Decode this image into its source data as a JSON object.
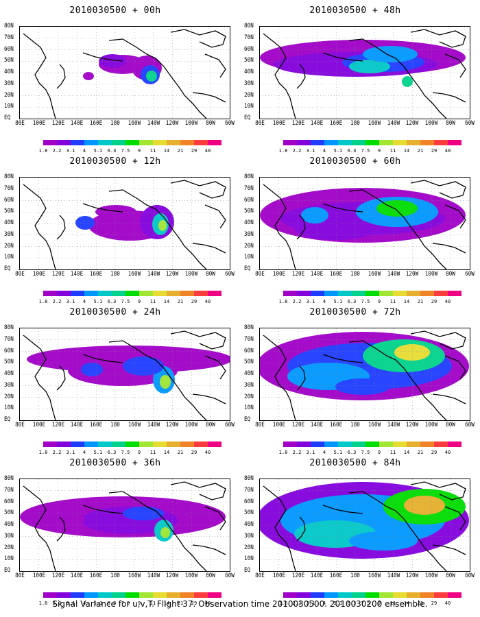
{
  "caption": "Signal Variance for u,v,T. Flight 37. Observation time 2010030500. 2010030200 ensemble.",
  "lat_labels": [
    "80N",
    "70N",
    "60N",
    "50N",
    "40N",
    "30N",
    "20N",
    "10N",
    "EQ"
  ],
  "lon_labels": [
    "80E",
    "100E",
    "120E",
    "140E",
    "160E",
    "180",
    "160W",
    "140W",
    "120W",
    "100W",
    "80W",
    "60W"
  ],
  "colorbar": {
    "labels": [
      "1.8",
      "2.2",
      "3.1",
      "4",
      "5.1",
      "6.3",
      "7.5",
      "9",
      "11",
      "14",
      "21",
      "29",
      "40"
    ],
    "colors": [
      "#a000c8",
      "#8200dc",
      "#1e3cff",
      "#0096ff",
      "#00c8c8",
      "#00d28c",
      "#00dc00",
      "#a0e632",
      "#e6dc32",
      "#e6af2d",
      "#f08228",
      "#fa3c3c",
      "#f00082"
    ]
  },
  "panels": [
    {
      "title": "2010030500 + 00h",
      "side": "left",
      "row": 0
    },
    {
      "title": "2010030500 + 48h",
      "side": "right",
      "row": 0
    },
    {
      "title": "2010030500 + 12h",
      "side": "left",
      "row": 1
    },
    {
      "title": "2010030500 + 60h",
      "side": "right",
      "row": 1
    },
    {
      "title": "2010030500 + 24h",
      "side": "left",
      "row": 2
    },
    {
      "title": "2010030500 + 72h",
      "side": "right",
      "row": 2
    },
    {
      "title": "2010030500 + 36h",
      "side": "left",
      "row": 3
    },
    {
      "title": "2010030500 + 84h",
      "side": "right",
      "row": 3
    }
  ]
}
